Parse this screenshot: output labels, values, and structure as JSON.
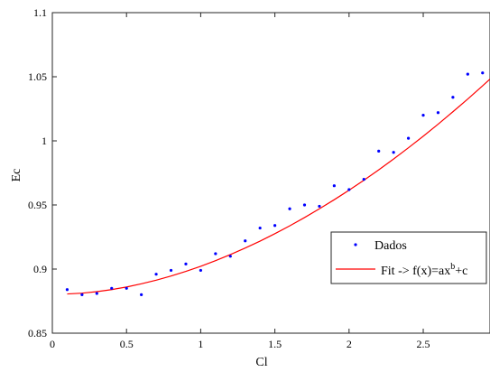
{
  "chart_data": {
    "type": "scatter",
    "xlabel": "Cl",
    "ylabel": "Ec",
    "xlim": [
      0,
      2.95
    ],
    "ylim": [
      0.85,
      1.1
    ],
    "xticks": [
      0,
      0.5,
      1,
      1.5,
      2,
      2.5
    ],
    "xtick_labels": [
      "0",
      "0.5",
      "1",
      "1.5",
      "2",
      "2.5"
    ],
    "yticks": [
      0.85,
      0.9,
      0.95,
      1,
      1.05,
      1.1
    ],
    "ytick_labels": [
      "0.85",
      "0.9",
      "0.95",
      "1",
      "1.05",
      "1.1"
    ],
    "grid": false,
    "legend_position": "lower-right",
    "series": [
      {
        "name": "Dados",
        "kind": "points",
        "color": "#0000ff",
        "x": [
          0.1,
          0.2,
          0.3,
          0.4,
          0.5,
          0.6,
          0.7,
          0.8,
          0.9,
          1.0,
          1.1,
          1.2,
          1.3,
          1.4,
          1.5,
          1.6,
          1.7,
          1.8,
          1.9,
          2.0,
          2.1,
          2.2,
          2.3,
          2.4,
          2.5,
          2.6,
          2.7,
          2.8,
          2.9
        ],
        "y": [
          0.884,
          0.88,
          0.881,
          0.885,
          0.885,
          0.88,
          0.896,
          0.899,
          0.904,
          0.899,
          0.912,
          0.91,
          0.922,
          0.932,
          0.934,
          0.947,
          0.95,
          0.949,
          0.965,
          0.962,
          0.97,
          0.992,
          0.991,
          1.002,
          1.02,
          1.022,
          1.034,
          1.052,
          1.053
        ]
      },
      {
        "name": "Fit -> f(x)=ax",
        "name_superscript": "b",
        "name_suffix": "+c",
        "kind": "line",
        "color": "#ff0000",
        "x": [
          0.1,
          0.2,
          0.3,
          0.4,
          0.5,
          0.6,
          0.7,
          0.8,
          0.9,
          1.0,
          1.1,
          1.2,
          1.3,
          1.4,
          1.5,
          1.6,
          1.7,
          1.8,
          1.9,
          2.0,
          2.1,
          2.2,
          2.3,
          2.4,
          2.5,
          2.6,
          2.7,
          2.8,
          2.9,
          2.95
        ],
        "y": [
          0.8806,
          0.8812,
          0.8824,
          0.884,
          0.886,
          0.8885,
          0.8913,
          0.8946,
          0.8982,
          0.9022,
          0.9066,
          0.9113,
          0.9164,
          0.9218,
          0.9276,
          0.9337,
          0.9402,
          0.947,
          0.9541,
          0.9615,
          0.9693,
          0.9774,
          0.9858,
          0.9946,
          1.0036,
          1.013,
          1.0227,
          1.0326,
          1.0429,
          1.0482
        ]
      }
    ]
  }
}
